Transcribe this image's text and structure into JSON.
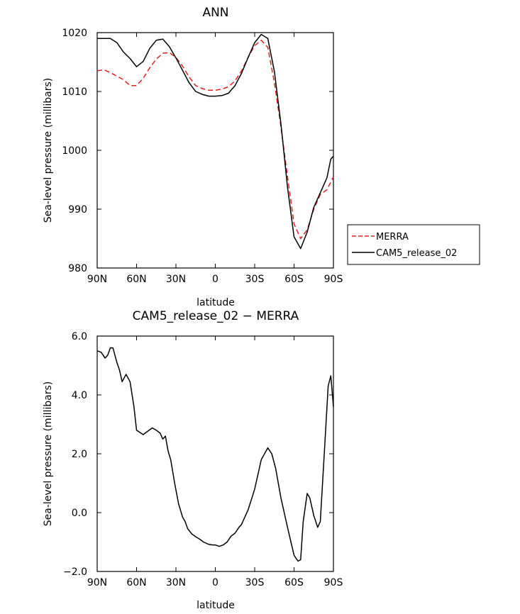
{
  "chart_data": [
    {
      "type": "line",
      "title": "ANN",
      "xlabel": "latitude",
      "ylabel": "Sea-level pressure (millibars)",
      "xlim": [
        90,
        -90
      ],
      "ylim": [
        980,
        1020
      ],
      "xticks": [
        90,
        60,
        30,
        0,
        -30,
        -60,
        -90
      ],
      "xtick_labels": [
        "90N",
        "60N",
        "30N",
        "0",
        "30S",
        "60S",
        "90S"
      ],
      "yticks": [
        980,
        990,
        1000,
        1010,
        1020
      ],
      "ytick_labels": [
        "980",
        "990",
        "1000",
        "1010",
        "1020"
      ],
      "legend": [
        "MERRA",
        "CAM5_release_02"
      ],
      "legend_position": "right",
      "series": [
        {
          "name": "MERRA",
          "color": "#e0201e",
          "dash": "dashed",
          "x": [
            90,
            85,
            80,
            75,
            70,
            65,
            60,
            55,
            50,
            45,
            40,
            35,
            30,
            25,
            20,
            15,
            10,
            5,
            0,
            -5,
            -10,
            -15,
            -20,
            -25,
            -30,
            -35,
            -40,
            -45,
            -50,
            -55,
            -60,
            -65,
            -70,
            -75,
            -80,
            -85,
            -90
          ],
          "y": [
            1013.5,
            1013.7,
            1013.2,
            1012.6,
            1012.0,
            1011.0,
            1011.0,
            1012.2,
            1014.0,
            1015.5,
            1016.5,
            1016.6,
            1015.8,
            1014.3,
            1012.5,
            1011.0,
            1010.5,
            1010.2,
            1010.2,
            1010.4,
            1010.8,
            1011.8,
            1013.5,
            1015.8,
            1017.8,
            1018.7,
            1017.5,
            1011.5,
            1004.0,
            995.5,
            987.5,
            985.0,
            986.5,
            990.0,
            992.5,
            993.3,
            995.5
          ]
        },
        {
          "name": "CAM5_release_02",
          "color": "#000000",
          "dash": "solid",
          "x": [
            90,
            85,
            80,
            75,
            70,
            65,
            60,
            55,
            50,
            45,
            40,
            35,
            30,
            25,
            20,
            15,
            10,
            5,
            0,
            -5,
            -10,
            -15,
            -20,
            -25,
            -30,
            -35,
            -40,
            -45,
            -50,
            -55,
            -60,
            -65,
            -70,
            -75,
            -80,
            -85,
            -88,
            -90
          ],
          "y": [
            1019.0,
            1019.0,
            1019.0,
            1018.3,
            1016.7,
            1015.6,
            1014.2,
            1015.1,
            1017.3,
            1018.7,
            1018.9,
            1017.6,
            1015.7,
            1013.6,
            1011.5,
            1010.0,
            1009.5,
            1009.2,
            1009.2,
            1009.3,
            1009.7,
            1011.0,
            1013.1,
            1015.8,
            1018.3,
            1019.7,
            1019.0,
            1013.4,
            1004.5,
            993.7,
            985.3,
            983.3,
            986.1,
            990.3,
            992.8,
            995.3,
            998.5,
            999.0
          ]
        }
      ]
    },
    {
      "type": "line",
      "title": "CAM5_release_02 − MERRA",
      "xlabel": "latitude",
      "ylabel": "Sea-level pressure (millibars)",
      "xlim": [
        90,
        -90
      ],
      "ylim": [
        -2.0,
        6.0
      ],
      "xticks": [
        90,
        60,
        30,
        0,
        -30,
        -60,
        -90
      ],
      "xtick_labels": [
        "90N",
        "60N",
        "30N",
        "0",
        "30S",
        "60S",
        "90S"
      ],
      "yticks": [
        -2.0,
        0.0,
        2.0,
        4.0,
        6.0
      ],
      "ytick_labels": [
        "−2.0",
        "0.0",
        "2.0",
        "4.0",
        "6.0"
      ],
      "series": [
        {
          "name": "CAM5_release_02 − MERRA",
          "color": "#000000",
          "dash": "solid",
          "x": [
            90,
            87,
            84,
            82,
            80,
            78,
            75,
            73,
            71,
            68,
            65,
            62,
            60,
            55,
            52,
            48,
            45,
            42,
            40,
            38,
            36,
            34,
            31,
            28,
            25,
            23,
            21,
            18,
            15,
            12,
            9,
            5,
            2,
            0,
            -3,
            -6,
            -9,
            -12,
            -15,
            -18,
            -20,
            -25,
            -30,
            -35,
            -40,
            -43,
            -46,
            -50,
            -55,
            -60,
            -63,
            -65,
            -67,
            -70,
            -72,
            -75,
            -78,
            -80,
            -83,
            -86,
            -88,
            -90
          ],
          "y": [
            5.5,
            5.45,
            5.25,
            5.35,
            5.6,
            5.6,
            5.1,
            4.85,
            4.45,
            4.7,
            4.45,
            3.6,
            2.8,
            2.65,
            2.75,
            2.88,
            2.8,
            2.7,
            2.5,
            2.6,
            2.1,
            1.8,
            1.0,
            0.3,
            -0.15,
            -0.3,
            -0.55,
            -0.72,
            -0.82,
            -0.9,
            -1.0,
            -1.08,
            -1.1,
            -1.1,
            -1.15,
            -1.1,
            -1.0,
            -0.8,
            -0.7,
            -0.5,
            -0.4,
            0.1,
            0.8,
            1.8,
            2.2,
            2.0,
            1.5,
            0.5,
            -0.5,
            -1.45,
            -1.65,
            -1.6,
            -0.3,
            0.65,
            0.5,
            -0.1,
            -0.5,
            -0.3,
            2.0,
            4.3,
            4.65,
            3.6
          ]
        }
      ]
    }
  ]
}
